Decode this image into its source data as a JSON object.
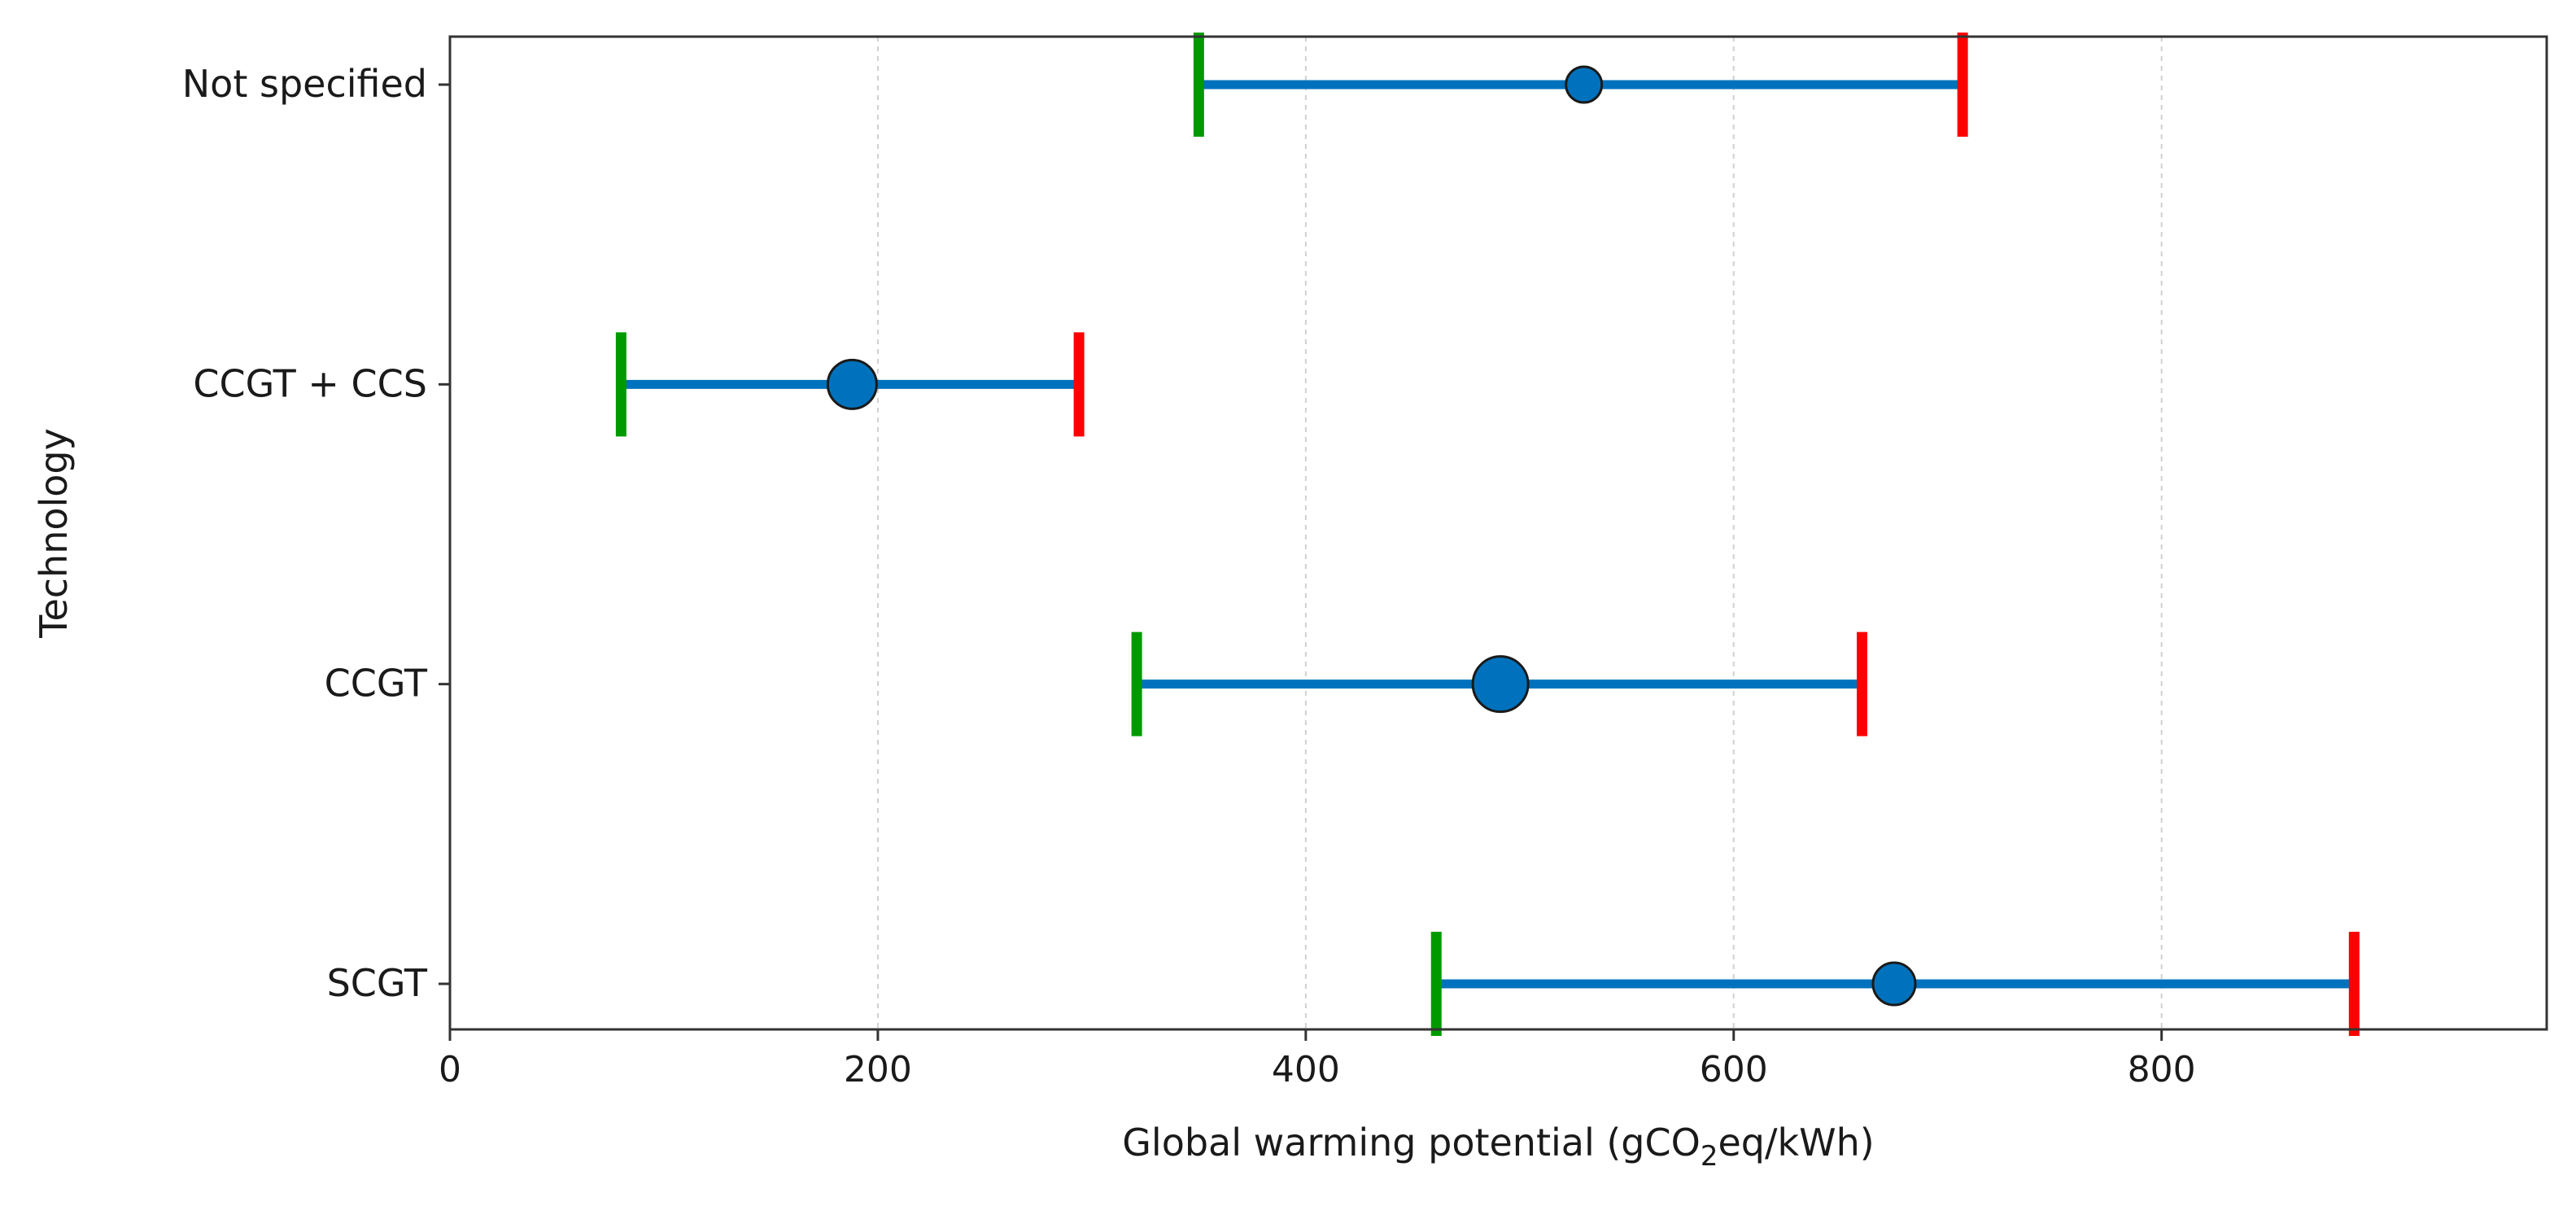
{
  "chart_data": {
    "type": "range-dot",
    "title": "",
    "xlabel": {
      "prefix": "Global warming potential (gCO",
      "subscript": "2",
      "suffix": "eq/kWh)"
    },
    "ylabel": "Technology",
    "xlim": [
      0,
      980
    ],
    "xticks": [
      0,
      200,
      400,
      600,
      800
    ],
    "xtick_labels": [
      "0",
      "200",
      "400",
      "600",
      "800"
    ],
    "grid": {
      "x": true,
      "y": false,
      "style": "dashed"
    },
    "categories": [
      "SCGT",
      "CCGT",
      "CCGT + CCS",
      "Not specified"
    ],
    "series": [
      {
        "category": "Not specified",
        "min": 350,
        "central": 530,
        "max": 707,
        "marker_size": "small"
      },
      {
        "category": "CCGT + CCS",
        "min": 80,
        "central": 188,
        "max": 294,
        "marker_size": "medium"
      },
      {
        "category": "CCGT",
        "min": 321,
        "central": 491,
        "max": 660,
        "marker_size": "large"
      },
      {
        "category": "SCGT",
        "min": 461,
        "central": 675,
        "max": 890,
        "marker_size": "medium-small"
      }
    ],
    "colors": {
      "range_line": "#0072bd",
      "marker_fill": "#0072bd",
      "marker_edge": "#1a1a1a",
      "min_tick": "#009a00",
      "max_tick": "#ff0000",
      "axis": "#333333",
      "grid": "#d0d0d0"
    }
  }
}
